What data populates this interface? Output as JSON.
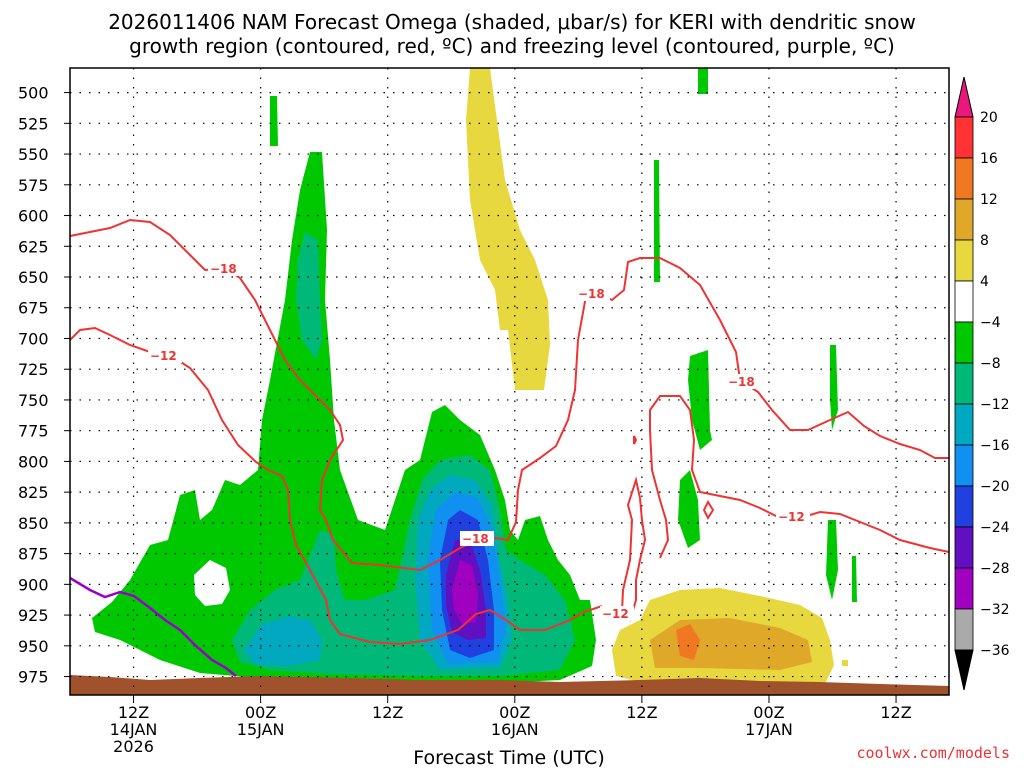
{
  "title_line1": "2026011406 NAM Forecast Omega (shaded, μbar/s) for KERI with dendritic snow",
  "title_line2": "growth region (contoured, red, ºC) and freezing level (contoured, purple, ºC)",
  "credit": "coolwx.com/models",
  "chart_data": {
    "type": "heatmap",
    "xlabel": "Forecast Time (UTC)",
    "ylabel": "",
    "y_ticks": [
      500,
      525,
      550,
      575,
      600,
      625,
      650,
      675,
      700,
      725,
      750,
      775,
      800,
      825,
      850,
      875,
      900,
      925,
      950,
      975
    ],
    "y_range_hpa": [
      480,
      990
    ],
    "x_range": [
      "2026-01-14 06Z",
      "2026-01-17 17Z"
    ],
    "x_tick_labels": [
      {
        "time": "2026-01-14 12Z",
        "line1": "12Z",
        "line2": "14JAN",
        "line3": "2026"
      },
      {
        "time": "2026-01-15 00Z",
        "line1": "00Z",
        "line2": "15JAN",
        "line3": ""
      },
      {
        "time": "2026-01-15 12Z",
        "line1": "12Z",
        "line2": "",
        "line3": ""
      },
      {
        "time": "2026-01-16 00Z",
        "line1": "00Z",
        "line2": "16JAN",
        "line3": ""
      },
      {
        "time": "2026-01-16 12Z",
        "line1": "12Z",
        "line2": "",
        "line3": ""
      },
      {
        "time": "2026-01-17 00Z",
        "line1": "00Z",
        "line2": "17JAN",
        "line3": ""
      },
      {
        "time": "2026-01-17 12Z",
        "line1": "12Z",
        "line2": "",
        "line3": ""
      }
    ],
    "grid": true,
    "colorbar": {
      "labels": [
        "20",
        "16",
        "12",
        "8",
        "4",
        "−4",
        "−8",
        "−12",
        "−16",
        "−20",
        "−24",
        "−28",
        "−32",
        "−36"
      ],
      "colors": [
        "#ff3333",
        "#f07820",
        "#e0a828",
        "#e8d840",
        "#ffffff",
        "#00c800",
        "#00b878",
        "#00a8c0",
        "#1090f0",
        "#2040e0",
        "#6010c0",
        "#a000c0",
        "#aaaaaa"
      ],
      "top_arrow_color": "#e8187c",
      "bottom_arrow_color": "#000000"
    },
    "omega_regions": [
      {
        "level": -6,
        "color": "#00c800",
        "note": "main upward motion region"
      },
      {
        "level": -10,
        "color": "#00b878"
      },
      {
        "level": -14,
        "color": "#00a8c0"
      },
      {
        "level": -18,
        "color": "#1090f0"
      },
      {
        "level": -22,
        "color": "#2040e0"
      },
      {
        "level": -26,
        "color": "#6010c0"
      },
      {
        "level": -30,
        "color": "#a000c0"
      },
      {
        "level": 6,
        "color": "#e8d840"
      },
      {
        "level": 10,
        "color": "#e0a828"
      },
      {
        "level": 14,
        "color": "#f07820"
      }
    ],
    "red_contours": [
      {
        "value": -18,
        "label": "−18"
      },
      {
        "value": -12,
        "label": "−12"
      }
    ],
    "freezing_level_color": "#9900cc",
    "terrain_color": "#a0522d"
  }
}
